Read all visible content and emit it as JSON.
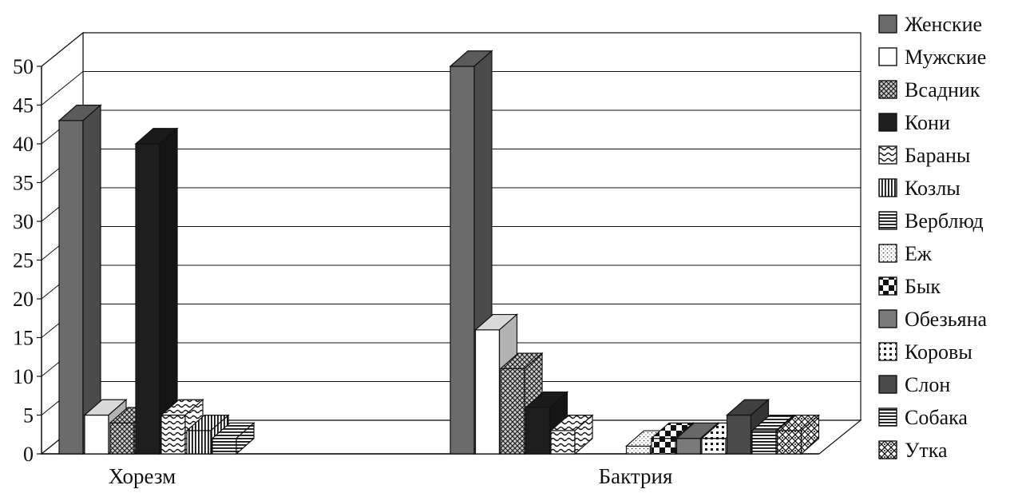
{
  "chart_data": {
    "type": "bar",
    "subtype": "3d-clustered",
    "title": "",
    "xlabel": "",
    "ylabel": "",
    "ylim": [
      0,
      50
    ],
    "yticks": [
      0,
      5,
      10,
      15,
      20,
      25,
      30,
      35,
      40,
      45,
      50
    ],
    "grid": true,
    "legend_position": "right",
    "categories": [
      "Хорезм",
      "Бактрия"
    ],
    "series": [
      {
        "name": "Женские",
        "values": [
          43,
          50
        ],
        "color": "#6b6b6b",
        "pattern": "solid"
      },
      {
        "name": "Мужские",
        "values": [
          5,
          16
        ],
        "color": "#ffffff",
        "pattern": "solid"
      },
      {
        "name": "Всадник",
        "values": [
          4,
          11
        ],
        "color": "#9a9a9a",
        "pattern": "crosshatch"
      },
      {
        "name": "Кони",
        "values": [
          40,
          6
        ],
        "color": "#1e1e1e",
        "pattern": "solid"
      },
      {
        "name": "Бараны",
        "values": [
          5,
          3
        ],
        "color": "#ffffff",
        "pattern": "wave"
      },
      {
        "name": "Козлы",
        "values": [
          3,
          0
        ],
        "color": "#ffffff",
        "pattern": "vertical"
      },
      {
        "name": "Верблюд",
        "values": [
          2,
          0
        ],
        "color": "#ffffff",
        "pattern": "horizontal"
      },
      {
        "name": "Еж",
        "values": [
          0,
          1
        ],
        "color": "#ffffff",
        "pattern": "dots"
      },
      {
        "name": "Бык",
        "values": [
          0,
          2
        ],
        "color": "#ffffff",
        "pattern": "checker"
      },
      {
        "name": "Обезьяна",
        "values": [
          0,
          2
        ],
        "color": "#7a7a7a",
        "pattern": "solid"
      },
      {
        "name": "Коровы",
        "values": [
          0,
          2
        ],
        "color": "#ffffff",
        "pattern": "bigdots"
      },
      {
        "name": "Слон",
        "values": [
          0,
          5
        ],
        "color": "#4a4a4a",
        "pattern": "solid"
      },
      {
        "name": "Собака",
        "values": [
          0,
          3
        ],
        "color": "#ffffff",
        "pattern": "horizontal"
      },
      {
        "name": "Утка",
        "values": [
          0,
          3
        ],
        "color": "#ffffff",
        "pattern": "diamond"
      }
    ]
  }
}
